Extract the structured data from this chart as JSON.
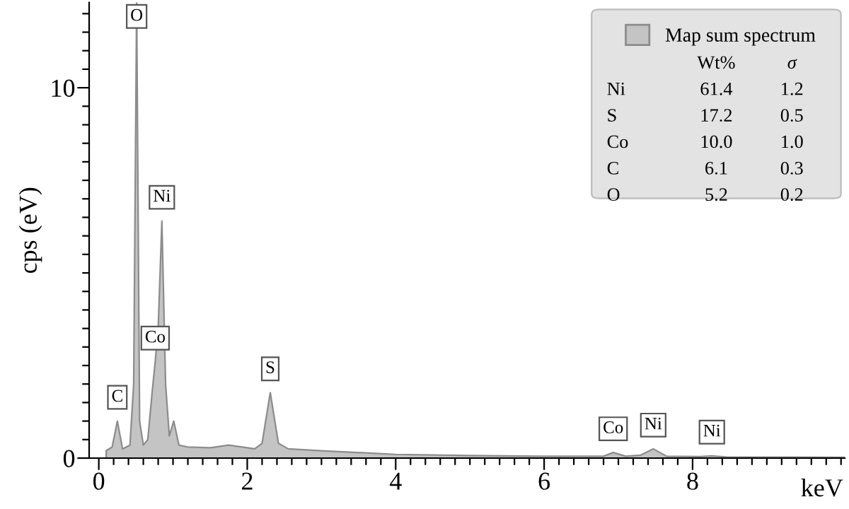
{
  "chart_data": {
    "type": "area",
    "xlabel": "keV",
    "ylabel": "cps (eV)",
    "series": [
      {
        "name": "Map sum spectrum",
        "color": "#c4c4c4",
        "x": [
          0.1,
          0.18,
          0.25,
          0.32,
          0.42,
          0.47,
          0.51,
          0.55,
          0.6,
          0.66,
          0.72,
          0.76,
          0.8,
          0.85,
          0.9,
          0.95,
          1.01,
          1.08,
          1.2,
          1.5,
          1.75,
          2.1,
          2.2,
          2.31,
          2.42,
          2.55,
          3.0,
          4.0,
          5.0,
          6.0,
          6.8,
          6.93,
          7.1,
          7.3,
          7.47,
          7.65,
          8.1,
          8.26,
          8.45,
          10.05
        ],
        "values": [
          0.2,
          0.3,
          1.0,
          0.25,
          0.35,
          2.0,
          12.3,
          1.0,
          0.35,
          0.5,
          1.8,
          2.6,
          3.5,
          6.4,
          2.0,
          0.6,
          1.0,
          0.35,
          0.3,
          0.28,
          0.35,
          0.25,
          0.4,
          1.77,
          0.4,
          0.25,
          0.2,
          0.1,
          0.07,
          0.05,
          0.05,
          0.15,
          0.05,
          0.08,
          0.25,
          0.05,
          0.04,
          0.06,
          0.03,
          0.02
        ]
      }
    ],
    "xlim": [
      -0.13,
      10.05
    ],
    "ylim": [
      0,
      12.3
    ],
    "xticks": [
      0,
      {
        "value": 0.2,
        "label": null
      },
      {
        "value": 0.4,
        "label": null
      },
      {
        "value": 0.6,
        "label": null
      },
      {
        "value": 0.8,
        "label": null
      },
      {
        "value": 1,
        "label": null
      },
      {
        "value": 1.2,
        "label": null
      },
      {
        "value": 1.4,
        "label": null
      },
      {
        "value": 1.6,
        "label": null
      },
      {
        "value": 1.8,
        "label": null
      },
      2,
      {
        "value": 2.2,
        "label": null
      },
      {
        "value": 2.4,
        "label": null
      },
      {
        "value": 2.6,
        "label": null
      },
      {
        "value": 2.8,
        "label": null
      },
      {
        "value": 3,
        "label": null
      },
      {
        "value": 3.2,
        "label": null
      },
      {
        "value": 3.4,
        "label": null
      },
      {
        "value": 3.6,
        "label": null
      },
      {
        "value": 3.8,
        "label": null
      },
      4,
      {
        "value": 4.2,
        "label": null
      },
      {
        "value": 4.4,
        "label": null
      },
      {
        "value": 4.6,
        "label": null
      },
      {
        "value": 4.8,
        "label": null
      },
      {
        "value": 5,
        "label": null
      },
      {
        "value": 5.2,
        "label": null
      },
      {
        "value": 5.4,
        "label": null
      },
      {
        "value": 5.6,
        "label": null
      },
      {
        "value": 5.8,
        "label": null
      },
      6,
      {
        "value": 6.2,
        "label": null
      },
      {
        "value": 6.4,
        "label": null
      },
      {
        "value": 6.6,
        "label": null
      },
      {
        "value": 6.8,
        "label": null
      },
      {
        "value": 7,
        "label": null
      },
      {
        "value": 7.2,
        "label": null
      },
      {
        "value": 7.4,
        "label": null
      },
      {
        "value": 7.6,
        "label": null
      },
      {
        "value": 7.8,
        "label": null
      },
      8,
      {
        "value": 8.2,
        "label": null
      },
      {
        "value": 8.4,
        "label": null
      },
      {
        "value": 8.6,
        "label": null
      },
      {
        "value": 8.8,
        "label": null
      },
      {
        "value": 9,
        "label": null
      },
      {
        "value": 9.2,
        "label": null
      },
      {
        "value": 9.4,
        "label": null
      },
      {
        "value": 9.6,
        "label": null
      },
      {
        "value": 9.8,
        "label": null
      },
      {
        "value": 10,
        "label": null
      }
    ],
    "yticks": [
      0,
      {
        "value": 0.5,
        "label": null
      },
      {
        "value": 1,
        "label": null
      },
      {
        "value": 1.5,
        "label": null
      },
      {
        "value": 2,
        "label": null
      },
      {
        "value": 2.5,
        "label": null
      },
      {
        "value": 3,
        "label": null
      },
      {
        "value": 3.5,
        "label": null
      },
      {
        "value": 4,
        "label": null
      },
      {
        "value": 4.5,
        "label": null
      },
      {
        "value": 5,
        "label": null
      },
      {
        "value": 5.5,
        "label": null
      },
      {
        "value": 6,
        "label": null
      },
      {
        "value": 6.5,
        "label": null
      },
      {
        "value": 7,
        "label": null
      },
      {
        "value": 7.5,
        "label": null
      },
      {
        "value": 8,
        "label": null
      },
      {
        "value": 8.5,
        "label": null
      },
      {
        "value": 9,
        "label": null
      },
      {
        "value": 9.5,
        "label": null
      },
      10,
      {
        "value": 10.5,
        "label": null
      },
      {
        "value": 11,
        "label": null
      },
      {
        "value": 11.5,
        "label": null
      },
      {
        "value": 12,
        "label": null
      }
    ],
    "grid": false,
    "legend": "top right",
    "annotations": [
      {
        "text": "O",
        "x": 0.51,
        "y": 12.3
      },
      {
        "text": "Ni",
        "x": 0.85,
        "y": 6.4
      },
      {
        "text": "Co",
        "x": 0.76,
        "y": 2.6
      },
      {
        "text": "C",
        "x": 0.25,
        "y": 1.0
      },
      {
        "text": "S",
        "x": 2.31,
        "y": 1.77
      },
      {
        "text": "Co",
        "x": 6.93,
        "y": 0.15
      },
      {
        "text": "Ni",
        "x": 7.47,
        "y": 0.25
      },
      {
        "text": "Ni",
        "x": 8.26,
        "y": 0.06
      },
      "Wt%",
      "σ",
      "Ni",
      "61.4",
      "1.2",
      "S",
      "17.2",
      "0.5",
      "Co",
      "10.0",
      "1.0",
      "C",
      "6.1",
      "0.3",
      "O",
      "5.2",
      "0.2"
    ]
  }
}
